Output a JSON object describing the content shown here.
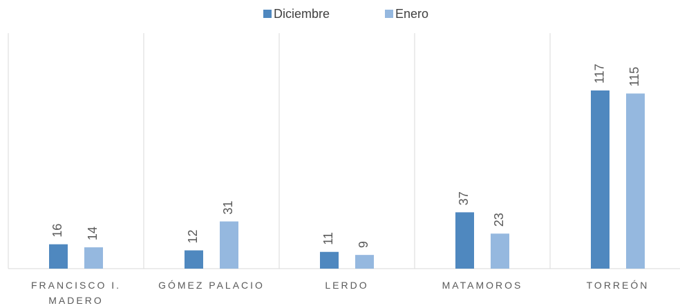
{
  "chart_data": {
    "type": "bar",
    "categories": [
      "FRANCISCO I. MADERO",
      "GÓMEZ PALACIO",
      "LERDO",
      "MATAMOROS",
      "TORREÓN"
    ],
    "series": [
      {
        "name": "Diciembre",
        "color": "#4f88bf",
        "values": [
          16,
          12,
          11,
          37,
          117
        ]
      },
      {
        "name": "Enero",
        "color": "#95b8df",
        "values": [
          14,
          31,
          9,
          23,
          115
        ]
      }
    ],
    "legend": "top"
  }
}
